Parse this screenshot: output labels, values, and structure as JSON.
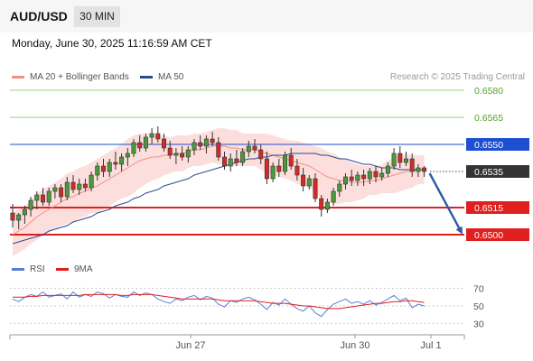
{
  "header": {
    "pair": "AUD/USD",
    "timeframe": "30 MIN"
  },
  "datetime": "Monday, June 30, 2025 11:16:59 AM CET",
  "legend": {
    "ma20": {
      "label": "MA 20 + Bollinger Bands",
      "color": "#f28e86"
    },
    "ma50": {
      "label": "MA 50",
      "color": "#2a4b8d"
    }
  },
  "credit": "Research © 2025 Trading Central",
  "rsi_legend": {
    "rsi": {
      "label": "RSI",
      "color": "#5b7fd6"
    },
    "ma9": {
      "label": "9MA",
      "color": "#e01f1f"
    }
  },
  "chart_data": {
    "type": "candlestick",
    "ylim": [
      0.649,
      0.659
    ],
    "levels": [
      {
        "value": 0.658,
        "label": "0.6580",
        "kind": "resistance-minor",
        "color": "#9bd07a"
      },
      {
        "value": 0.6565,
        "label": "0.6565",
        "kind": "resistance-minor",
        "color": "#9bd07a"
      },
      {
        "value": 0.655,
        "label": "0.6550",
        "kind": "pivot",
        "color": "#1f4fd1"
      },
      {
        "value": 0.6535,
        "label": "0.6535",
        "kind": "last-price",
        "color": "#333333"
      },
      {
        "value": 0.6515,
        "label": "0.6515",
        "kind": "support",
        "color": "#e01f1f"
      },
      {
        "value": 0.65,
        "label": "0.6500",
        "kind": "support",
        "color": "#e01f1f"
      }
    ],
    "x_ticks": [
      "Jun 27",
      "Jun 30",
      "Jul 1"
    ],
    "candles": [
      [
        0.6512,
        0.6517,
        0.6504,
        0.6508
      ],
      [
        0.6508,
        0.6512,
        0.6503,
        0.6511
      ],
      [
        0.6511,
        0.6516,
        0.6506,
        0.6514
      ],
      [
        0.6514,
        0.6521,
        0.651,
        0.6519
      ],
      [
        0.6519,
        0.6524,
        0.6514,
        0.6522
      ],
      [
        0.6522,
        0.6526,
        0.6516,
        0.6518
      ],
      [
        0.6518,
        0.6526,
        0.6516,
        0.6524
      ],
      [
        0.6524,
        0.6528,
        0.652,
        0.6526
      ],
      [
        0.6526,
        0.6528,
        0.6518,
        0.6521
      ],
      [
        0.6521,
        0.6532,
        0.6519,
        0.6529
      ],
      [
        0.6529,
        0.6533,
        0.6523,
        0.6525
      ],
      [
        0.6525,
        0.6531,
        0.6522,
        0.6528
      ],
      [
        0.6528,
        0.6531,
        0.6524,
        0.6526
      ],
      [
        0.6526,
        0.6535,
        0.6524,
        0.6533
      ],
      [
        0.6533,
        0.654,
        0.653,
        0.6538
      ],
      [
        0.6538,
        0.6542,
        0.6532,
        0.6535
      ],
      [
        0.6535,
        0.6542,
        0.6532,
        0.654
      ],
      [
        0.654,
        0.6546,
        0.6536,
        0.6539
      ],
      [
        0.6539,
        0.6545,
        0.6535,
        0.6543
      ],
      [
        0.6543,
        0.6548,
        0.6538,
        0.6545
      ],
      [
        0.6545,
        0.6553,
        0.6543,
        0.6551
      ],
      [
        0.6551,
        0.6555,
        0.6546,
        0.6548
      ],
      [
        0.6548,
        0.6556,
        0.6546,
        0.6554
      ],
      [
        0.6554,
        0.6559,
        0.655,
        0.6556
      ],
      [
        0.6556,
        0.656,
        0.6551,
        0.6553
      ],
      [
        0.6553,
        0.6556,
        0.6546,
        0.6548
      ],
      [
        0.6548,
        0.6552,
        0.6542,
        0.6544
      ],
      [
        0.6544,
        0.6548,
        0.6539,
        0.6545
      ],
      [
        0.6545,
        0.6549,
        0.6541,
        0.6543
      ],
      [
        0.6543,
        0.6549,
        0.654,
        0.6547
      ],
      [
        0.6547,
        0.6553,
        0.6544,
        0.6551
      ],
      [
        0.6551,
        0.6555,
        0.6547,
        0.6549
      ],
      [
        0.6549,
        0.6555,
        0.6545,
        0.6553
      ],
      [
        0.6553,
        0.6557,
        0.6549,
        0.6551
      ],
      [
        0.6551,
        0.6554,
        0.6541,
        0.6543
      ],
      [
        0.6543,
        0.6546,
        0.6536,
        0.6538
      ],
      [
        0.6538,
        0.6545,
        0.6535,
        0.6542
      ],
      [
        0.6542,
        0.6547,
        0.6538,
        0.654
      ],
      [
        0.654,
        0.6548,
        0.6538,
        0.6546
      ],
      [
        0.6546,
        0.6552,
        0.6543,
        0.6549
      ],
      [
        0.6549,
        0.6553,
        0.6545,
        0.6547
      ],
      [
        0.6547,
        0.655,
        0.6539,
        0.6542
      ],
      [
        0.6542,
        0.6546,
        0.6528,
        0.6531
      ],
      [
        0.6531,
        0.654,
        0.6529,
        0.6538
      ],
      [
        0.6538,
        0.6542,
        0.6532,
        0.6535
      ],
      [
        0.6535,
        0.6546,
        0.6533,
        0.6544
      ],
      [
        0.6544,
        0.6548,
        0.6536,
        0.6538
      ],
      [
        0.6538,
        0.6542,
        0.653,
        0.6533
      ],
      [
        0.6533,
        0.6537,
        0.6524,
        0.6527
      ],
      [
        0.6527,
        0.6533,
        0.6525,
        0.6531
      ],
      [
        0.6531,
        0.6534,
        0.6518,
        0.652
      ],
      [
        0.652,
        0.6522,
        0.651,
        0.6514
      ],
      [
        0.6514,
        0.652,
        0.6512,
        0.6518
      ],
      [
        0.6518,
        0.6526,
        0.6516,
        0.6524
      ],
      [
        0.6524,
        0.653,
        0.6521,
        0.6528
      ],
      [
        0.6528,
        0.6534,
        0.6525,
        0.6532
      ],
      [
        0.6532,
        0.6536,
        0.6527,
        0.653
      ],
      [
        0.653,
        0.6535,
        0.6527,
        0.6533
      ],
      [
        0.6533,
        0.6536,
        0.6527,
        0.6531
      ],
      [
        0.6531,
        0.6537,
        0.6528,
        0.6535
      ],
      [
        0.6535,
        0.6538,
        0.6529,
        0.6532
      ],
      [
        0.6532,
        0.6537,
        0.653,
        0.6534
      ],
      [
        0.6534,
        0.654,
        0.6532,
        0.6538
      ],
      [
        0.6538,
        0.6548,
        0.6536,
        0.6545
      ],
      [
        0.6545,
        0.6549,
        0.6537,
        0.654
      ],
      [
        0.654,
        0.6546,
        0.6538,
        0.6542
      ],
      [
        0.6542,
        0.6545,
        0.6532,
        0.6535
      ],
      [
        0.6535,
        0.6539,
        0.6532,
        0.6537
      ],
      [
        0.6537,
        0.6538,
        0.6532,
        0.6535
      ]
    ],
    "ma20": [
      0.65,
      0.6502,
      0.6504,
      0.6507,
      0.651,
      0.6512,
      0.6514,
      0.6516,
      0.6518,
      0.652,
      0.6521,
      0.6523,
      0.6524,
      0.6526,
      0.6527,
      0.6529,
      0.6531,
      0.6533,
      0.6535,
      0.6537,
      0.6539,
      0.6541,
      0.6542,
      0.6543,
      0.6543,
      0.6544,
      0.6544,
      0.6545,
      0.6545,
      0.6546,
      0.6547,
      0.6547,
      0.6548,
      0.6549,
      0.6549,
      0.6549,
      0.6548,
      0.6548,
      0.6547,
      0.6547,
      0.6547,
      0.6546,
      0.6545,
      0.6544,
      0.6543,
      0.6542,
      0.6541,
      0.654,
      0.6539,
      0.6538,
      0.6536,
      0.6534,
      0.6532,
      0.6531,
      0.653,
      0.653,
      0.6529,
      0.6529,
      0.6529,
      0.653,
      0.653,
      0.6531,
      0.6532,
      0.6533,
      0.6534,
      0.6535,
      0.6535,
      0.6536,
      0.6536
    ],
    "bb_width": [
      0.0012,
      0.0012,
      0.0012,
      0.0012,
      0.0013,
      0.0013,
      0.0013,
      0.0013,
      0.0013,
      0.0014,
      0.0014,
      0.0014,
      0.0014,
      0.0014,
      0.0015,
      0.0015,
      0.0015,
      0.0015,
      0.0015,
      0.0016,
      0.0016,
      0.0015,
      0.0014,
      0.0013,
      0.0012,
      0.0011,
      0.001,
      0.001,
      0.001,
      0.0009,
      0.0009,
      0.0009,
      0.0009,
      0.0009,
      0.001,
      0.001,
      0.001,
      0.001,
      0.0009,
      0.0009,
      0.0009,
      0.001,
      0.0011,
      0.0011,
      0.0011,
      0.0011,
      0.0011,
      0.0012,
      0.0012,
      0.0012,
      0.0013,
      0.0014,
      0.0014,
      0.0014,
      0.0013,
      0.0012,
      0.0011,
      0.001,
      0.0009,
      0.0008,
      0.0008,
      0.0008,
      0.0009,
      0.001,
      0.001,
      0.001,
      0.0009,
      0.0008,
      0.0008
    ],
    "ma50": [
      0.6495,
      0.6496,
      0.6497,
      0.6498,
      0.6499,
      0.65,
      0.6502,
      0.6503,
      0.6504,
      0.6505,
      0.6507,
      0.6508,
      0.6509,
      0.651,
      0.6512,
      0.6513,
      0.6514,
      0.6516,
      0.6517,
      0.6518,
      0.652,
      0.6521,
      0.6523,
      0.6524,
      0.6525,
      0.6527,
      0.6528,
      0.6529,
      0.653,
      0.6531,
      0.6533,
      0.6534,
      0.6535,
      0.6536,
      0.6537,
      0.6538,
      0.6539,
      0.654,
      0.6541,
      0.6542,
      0.6542,
      0.6543,
      0.6543,
      0.6544,
      0.6544,
      0.6544,
      0.6545,
      0.6545,
      0.6545,
      0.6545,
      0.6545,
      0.6544,
      0.6544,
      0.6543,
      0.6542,
      0.6542,
      0.6541,
      0.654,
      0.6539,
      0.6539,
      0.6538,
      0.6537,
      0.6537,
      0.6537,
      0.6536,
      0.6536,
      0.6536,
      0.6536,
      0.6536
    ],
    "forecast": {
      "from": 0.6535,
      "to": 0.65
    },
    "rsi": {
      "ylim": [
        20,
        80
      ],
      "levels": [
        70,
        50,
        30
      ],
      "rsi_values": [
        58,
        55,
        60,
        63,
        61,
        66,
        60,
        62,
        64,
        58,
        66,
        60,
        63,
        61,
        66,
        64,
        59,
        63,
        61,
        60,
        66,
        62,
        65,
        63,
        58,
        55,
        53,
        58,
        56,
        60,
        62,
        57,
        61,
        59,
        52,
        49,
        56,
        54,
        58,
        60,
        57,
        52,
        46,
        54,
        51,
        58,
        52,
        47,
        44,
        50,
        42,
        38,
        46,
        52,
        55,
        58,
        53,
        55,
        52,
        56,
        51,
        54,
        58,
        62,
        56,
        59,
        48,
        52,
        50
      ],
      "ma9_values": [
        60,
        60,
        60,
        61,
        61,
        62,
        62,
        62,
        62,
        62,
        62,
        62,
        63,
        63,
        63,
        63,
        63,
        63,
        62,
        62,
        63,
        63,
        63,
        63,
        62,
        61,
        60,
        59,
        58,
        58,
        58,
        58,
        58,
        58,
        57,
        56,
        56,
        56,
        56,
        56,
        56,
        55,
        54,
        53,
        53,
        53,
        52,
        51,
        50,
        50,
        49,
        48,
        47,
        47,
        47,
        48,
        49,
        50,
        51,
        52,
        53,
        53,
        54,
        55,
        55,
        56,
        56,
        55,
        54
      ]
    }
  }
}
